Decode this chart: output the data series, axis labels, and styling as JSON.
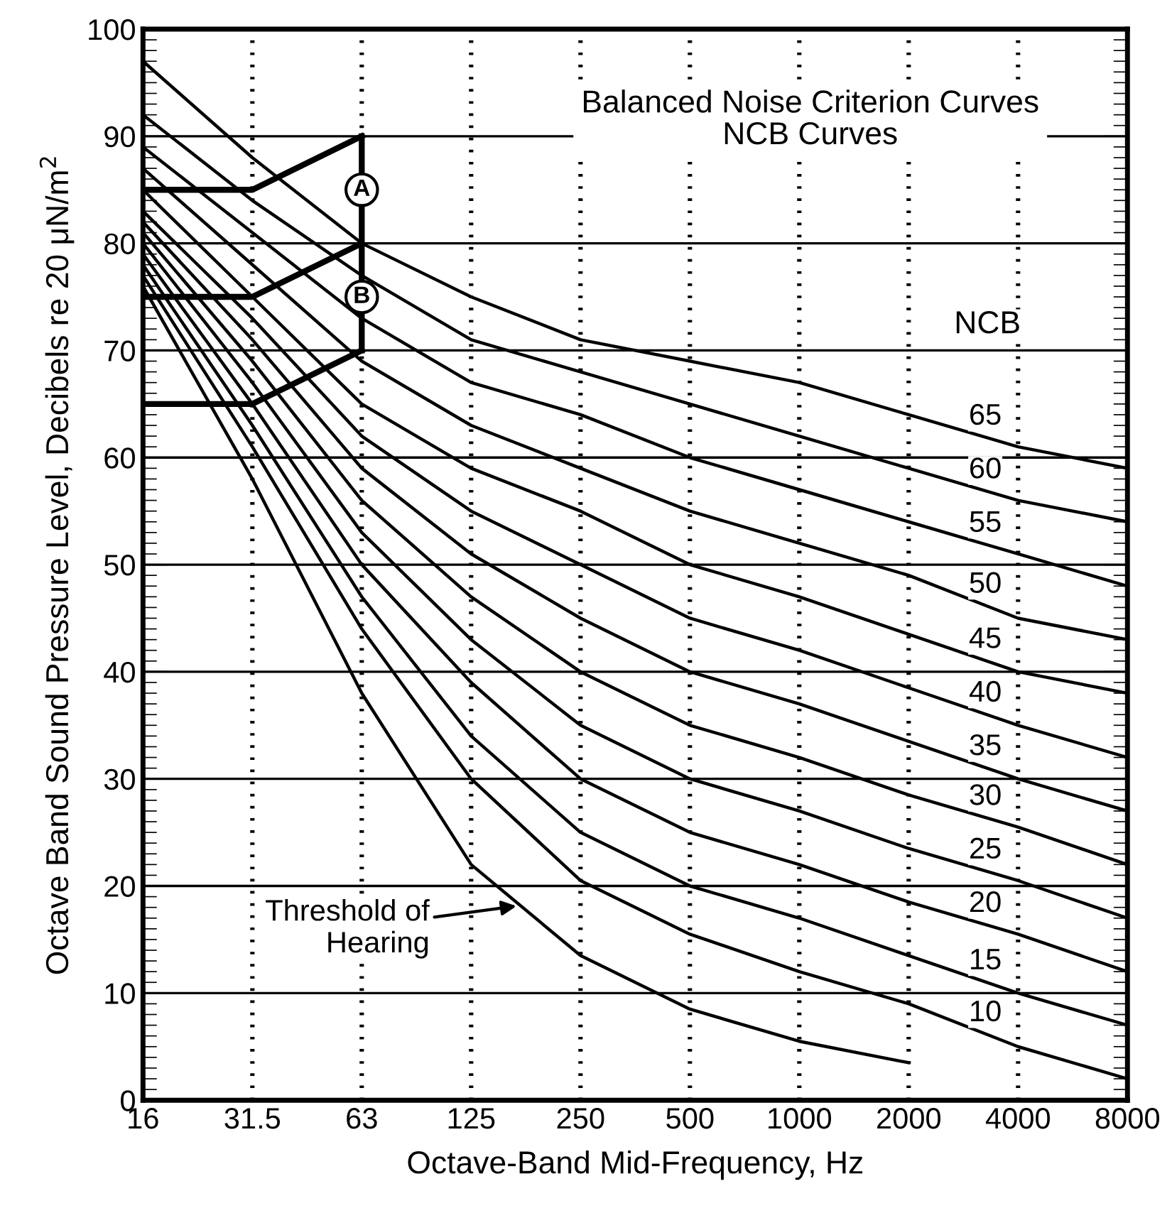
{
  "chart_data": {
    "type": "line",
    "title": "Balanced Noise Criterion Curves\nNCB Curves",
    "xlabel": "Octave-Band Mid-Frequency, Hz",
    "ylabel": "Octave Band Sound Pressure Level, Decibels re 20 μN/m$^{2}$",
    "legend_title": "NCB",
    "categories": [
      "16",
      "31.5",
      "63",
      "125",
      "250",
      "500",
      "1000",
      "2000",
      "4000",
      "8000"
    ],
    "ylim": [
      0,
      100
    ],
    "yticks": [
      0,
      10,
      20,
      30,
      40,
      50,
      60,
      70,
      80,
      90,
      100
    ],
    "grid": true,
    "legend": false,
    "series": [
      {
        "name": "65",
        "color": "#000000",
        "values": [
          97,
          88,
          80,
          75,
          71,
          69,
          67,
          64,
          61,
          59
        ]
      },
      {
        "name": "60",
        "color": "#000000",
        "values": [
          92,
          84,
          77,
          71,
          68,
          65,
          62,
          59,
          56,
          54
        ]
      },
      {
        "name": "55",
        "color": "#000000",
        "values": [
          89,
          81,
          73,
          67,
          64,
          60,
          57,
          54,
          51,
          48
        ]
      },
      {
        "name": "50",
        "color": "#000000",
        "values": [
          87,
          78,
          69,
          63,
          59,
          55,
          52,
          49,
          45,
          43
        ]
      },
      {
        "name": "45",
        "color": "#000000",
        "values": [
          85,
          75,
          65,
          59,
          55,
          50,
          47,
          43.5,
          40,
          38
        ]
      },
      {
        "name": "40",
        "color": "#000000",
        "values": [
          83,
          73,
          62,
          55,
          50,
          45,
          42,
          38.5,
          35,
          32
        ]
      },
      {
        "name": "35",
        "color": "#000000",
        "values": [
          82,
          71,
          59,
          51,
          45,
          40,
          37,
          33.5,
          30,
          27
        ]
      },
      {
        "name": "30",
        "color": "#000000",
        "values": [
          81,
          69,
          56,
          47,
          40,
          35,
          32,
          28.5,
          25.5,
          22
        ]
      },
      {
        "name": "25",
        "color": "#000000",
        "values": [
          80,
          67,
          53,
          43,
          35,
          30,
          27,
          23.5,
          20.5,
          17
        ]
      },
      {
        "name": "20",
        "color": "#000000",
        "values": [
          79,
          65,
          50,
          39,
          30,
          25,
          22,
          18.5,
          15.5,
          12
        ]
      },
      {
        "name": "15",
        "color": "#000000",
        "values": [
          78,
          63,
          47,
          34,
          25,
          20,
          17,
          13.5,
          10,
          7
        ]
      },
      {
        "name": "10",
        "color": "#000000",
        "values": [
          77,
          61,
          44,
          30,
          20.5,
          15.5,
          12,
          9,
          5,
          2
        ]
      },
      {
        "name": "Threshold of\nHearing",
        "color": "#000000",
        "values": [
          76,
          58,
          38,
          22,
          13.5,
          8.5,
          5.5,
          3.5,
          null,
          null
        ]
      },
      {
        "color": "#000000",
        "values": [
          85,
          85,
          90,
          null,
          null,
          null,
          null,
          null,
          null,
          null
        ]
      },
      {
        "color": "#000000",
        "values": [
          75,
          75,
          80,
          null,
          null,
          null,
          null,
          null,
          null,
          null
        ]
      },
      {
        "color": "#000000",
        "values": [
          65,
          65,
          70,
          null,
          null,
          null,
          null,
          null,
          null,
          null
        ]
      },
      {
        "color": "#000000",
        "x": [
          "63",
          "63"
        ],
        "values": [
          70,
          90
        ]
      }
    ],
    "annotations": [
      {
        "text": "A",
        "x": "63",
        "y": 85
      },
      {
        "text": "B",
        "x": "63",
        "y": 75
      }
    ]
  }
}
